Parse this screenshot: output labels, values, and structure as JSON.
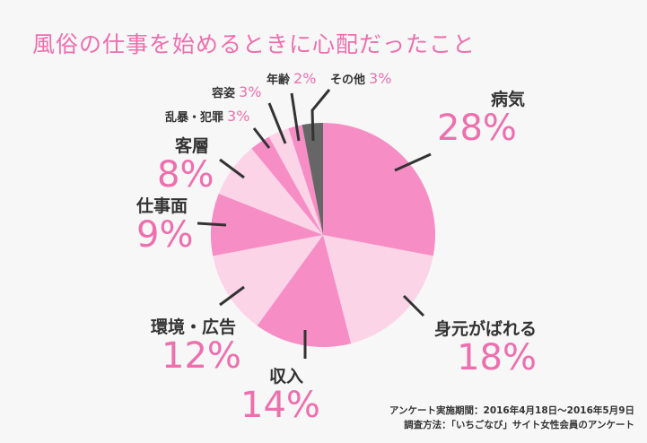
{
  "chart_data": {
    "type": "pie",
    "title": "風俗の仕事を始めるときに心配だったこと",
    "slices": [
      {
        "label": "病気",
        "value": 28,
        "display": "28%",
        "color": "#f78dc5"
      },
      {
        "label": "身元がばれる",
        "value": 18,
        "display": "18%",
        "color": "#fbd4e7"
      },
      {
        "label": "収入",
        "value": 14,
        "display": "14%",
        "color": "#f78dc5"
      },
      {
        "label": "環境・広告",
        "value": 12,
        "display": "12%",
        "color": "#fbd4e7"
      },
      {
        "label": "仕事面",
        "value": 9,
        "display": "9%",
        "color": "#f78dc5"
      },
      {
        "label": "客層",
        "value": 8,
        "display": "8%",
        "color": "#fbd4e7"
      },
      {
        "label": "乱暴・犯罪",
        "value": 3,
        "display": "3%",
        "color": "#f78dc5"
      },
      {
        "label": "容姿",
        "value": 3,
        "display": "3%",
        "color": "#fbd4e7"
      },
      {
        "label": "年齢",
        "value": 2,
        "display": "2%",
        "color": "#f78dc5"
      },
      {
        "label": "その他",
        "value": 3,
        "display": "3%",
        "color": "#666666"
      }
    ],
    "notes": [
      "アンケート実施期間：2016年4月18日～2016年5月9日",
      "調査方法：「いちごなび」サイト女性会員のアンケート"
    ]
  }
}
